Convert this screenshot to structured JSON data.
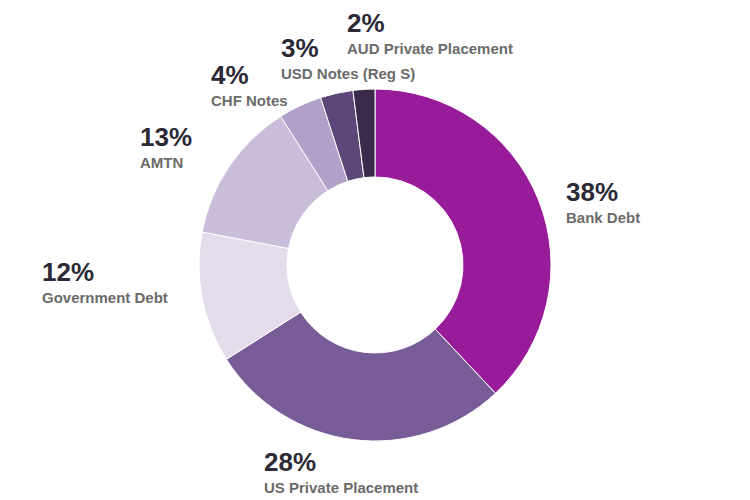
{
  "chart_data": {
    "type": "donut",
    "categories": [
      "Bank Debt",
      "US Private Placement",
      "Government Debt",
      "AMTN",
      "CHF Notes",
      "USD Notes (Reg S)",
      "AUD Private Placement"
    ],
    "values": [
      38,
      28,
      12,
      13,
      4,
      3,
      2
    ],
    "value_labels": [
      "38%",
      "28%",
      "12%",
      "13%",
      "4%",
      "3%",
      "2%"
    ],
    "colors": [
      "#981b99",
      "#775c97",
      "#e4dcea",
      "#c9bdd9",
      "#b1a0c8",
      "#5d4779",
      "#3a2a4b"
    ],
    "data_labels": true
  }
}
